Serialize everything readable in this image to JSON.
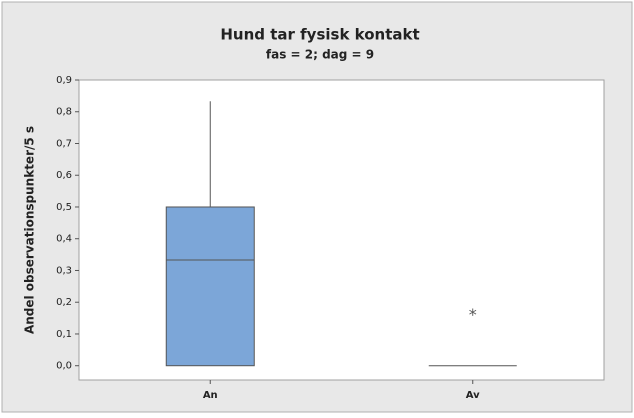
{
  "chart_data": {
    "type": "box",
    "title": "Hund tar fysisk kontakt",
    "subtitle": "fas = 2; dag = 9",
    "ylabel": "Andel observationspunkter/5 s",
    "categories": [
      "An",
      "Av"
    ],
    "color": "#7ca6d8",
    "boxes": [
      {
        "min": 0,
        "q1": 0,
        "median": 0.333,
        "q3": 0.5,
        "max": 0.833
      },
      {
        "min": 0,
        "q1": 0,
        "median": 0,
        "q3": 0,
        "max": 0,
        "outliers": [
          0.167
        ]
      }
    ],
    "ylim": [
      -0.045,
      0.9
    ],
    "yticks": [
      {
        "value": 0,
        "label": "0,0"
      },
      {
        "value": 0.1,
        "label": "0,1"
      },
      {
        "value": 0.2,
        "label": "0,2"
      },
      {
        "value": 0.3,
        "label": "0,3"
      },
      {
        "value": 0.4,
        "label": "0,4"
      },
      {
        "value": 0.5,
        "label": "0,5"
      },
      {
        "value": 0.6,
        "label": "0,6"
      },
      {
        "value": 0.7,
        "label": "0,7"
      },
      {
        "value": 0.8,
        "label": "0,8"
      },
      {
        "value": 0.9,
        "label": "0,9"
      }
    ]
  }
}
